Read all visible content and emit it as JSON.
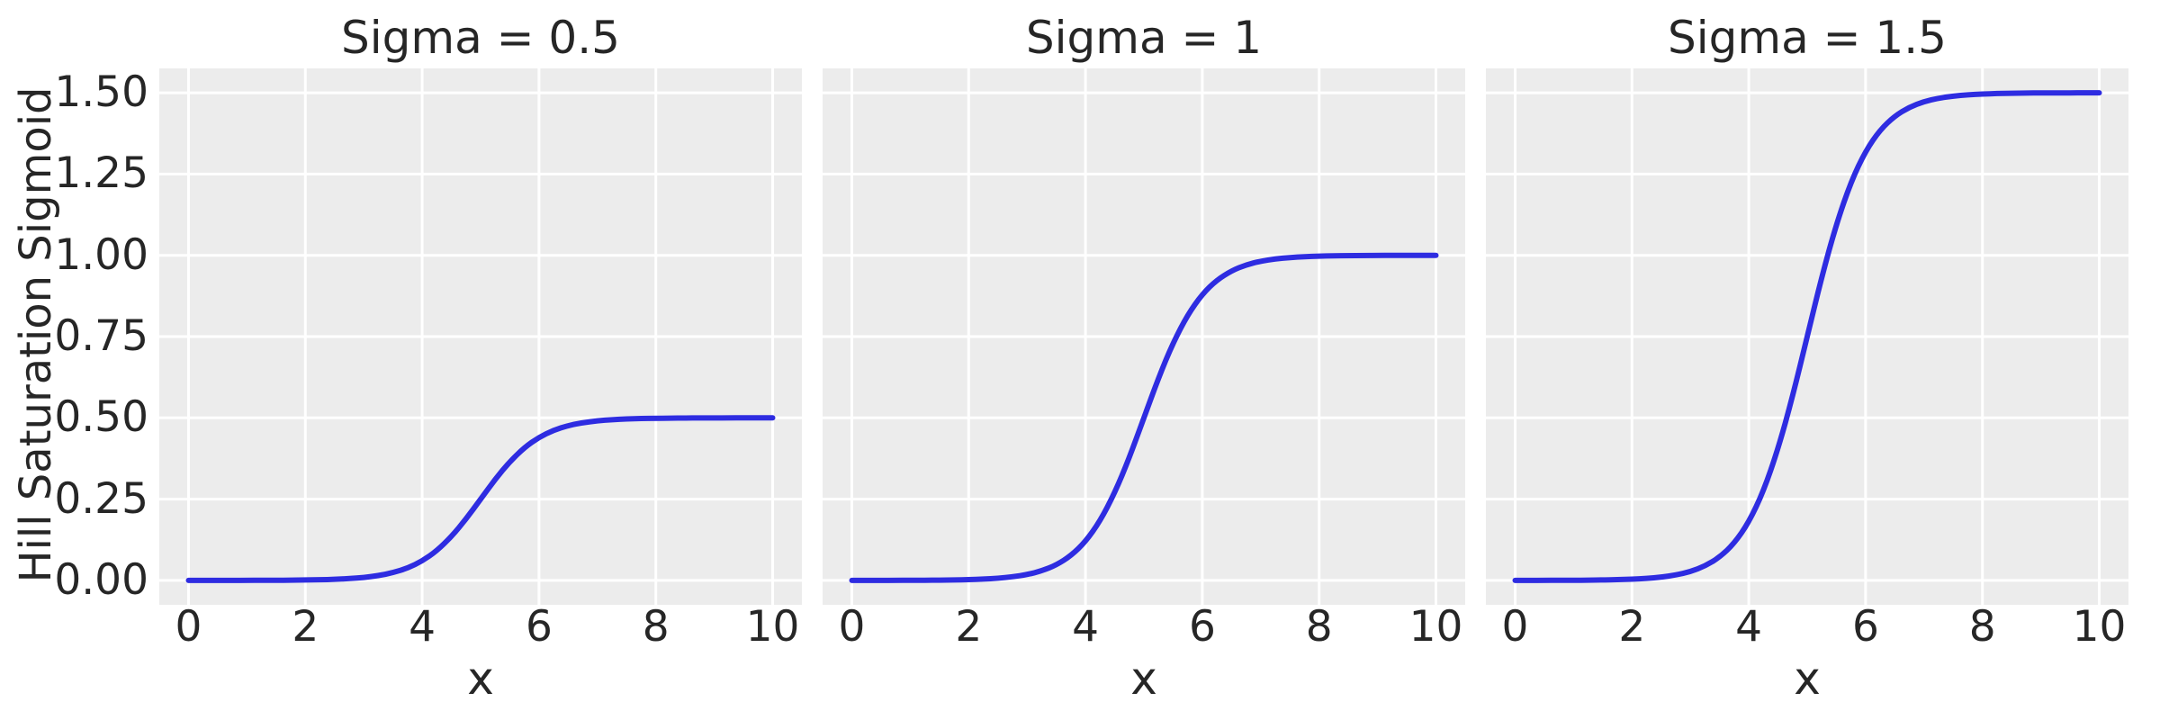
{
  "figure": {
    "ylabel": "Hill Saturation Sigmoid",
    "colors": {
      "figure_bg": "#ffffff",
      "panel_bg": "#ececec",
      "grid": "#ffffff",
      "line": "#2e2ce1",
      "text": "#262626"
    }
  },
  "chart_data": [
    {
      "type": "line",
      "title": "Sigma = 0.5",
      "sigma": 0.5,
      "xlabel": "x",
      "ylabel": "Hill Saturation Sigmoid",
      "xlim": [
        -0.5,
        10.5
      ],
      "ylim": [
        -0.075,
        1.575
      ],
      "xticks": [
        0,
        2,
        4,
        6,
        8,
        10
      ],
      "xtick_labels": [
        "0",
        "2",
        "4",
        "6",
        "8",
        "10"
      ],
      "yticks": [
        0,
        0.25,
        0.5,
        0.75,
        1.0,
        1.25,
        1.5
      ],
      "ytick_labels": [
        "0.00",
        "0.25",
        "0.50",
        "0.75",
        "1.00",
        "1.25",
        "1.50"
      ],
      "ytick_labels_visible": true,
      "grid": true,
      "legend": false,
      "x": [
        0,
        0.25,
        0.5,
        0.75,
        1,
        1.25,
        1.5,
        1.75,
        2,
        2.25,
        2.5,
        2.75,
        3,
        3.25,
        3.5,
        3.75,
        4,
        4.25,
        4.5,
        4.75,
        5,
        5.25,
        5.5,
        5.75,
        6,
        6.25,
        6.5,
        6.75,
        7,
        7.25,
        7.5,
        7.75,
        8,
        8.25,
        8.5,
        8.75,
        9,
        9.25,
        9.5,
        9.75,
        10
      ],
      "y": [
        0.0,
        0.0,
        0.0001,
        0.0001,
        0.0002,
        0.0003,
        0.0005,
        0.0008,
        0.0012,
        0.002,
        0.0033,
        0.0055,
        0.009,
        0.0147,
        0.0237,
        0.0379,
        0.0596,
        0.0912,
        0.1345,
        0.1888,
        0.25,
        0.3112,
        0.3655,
        0.4088,
        0.4404,
        0.4621,
        0.4763,
        0.4853,
        0.491,
        0.4945,
        0.4967,
        0.498,
        0.4988,
        0.4992,
        0.4995,
        0.4997,
        0.4998,
        0.4999,
        0.4999,
        0.5,
        0.5
      ]
    },
    {
      "type": "line",
      "title": "Sigma = 1",
      "sigma": 1,
      "xlabel": "x",
      "xlim": [
        -0.5,
        10.5
      ],
      "ylim": [
        -0.075,
        1.575
      ],
      "xticks": [
        0,
        2,
        4,
        6,
        8,
        10
      ],
      "xtick_labels": [
        "0",
        "2",
        "4",
        "6",
        "8",
        "10"
      ],
      "yticks": [
        0,
        0.25,
        0.5,
        0.75,
        1.0,
        1.25,
        1.5
      ],
      "ytick_labels": [
        "0.00",
        "0.25",
        "0.50",
        "0.75",
        "1.00",
        "1.25",
        "1.50"
      ],
      "ytick_labels_visible": false,
      "grid": true,
      "legend": false,
      "x": [
        0,
        0.25,
        0.5,
        0.75,
        1,
        1.25,
        1.5,
        1.75,
        2,
        2.25,
        2.5,
        2.75,
        3,
        3.25,
        3.5,
        3.75,
        4,
        4.25,
        4.5,
        4.75,
        5,
        5.25,
        5.5,
        5.75,
        6,
        6.25,
        6.5,
        6.75,
        7,
        7.25,
        7.5,
        7.75,
        8,
        8.25,
        8.5,
        8.75,
        9,
        9.25,
        9.5,
        9.75,
        10
      ],
      "y": [
        0.0,
        0.0001,
        0.0001,
        0.0002,
        0.0003,
        0.0006,
        0.0009,
        0.0015,
        0.0025,
        0.0041,
        0.0067,
        0.011,
        0.018,
        0.0293,
        0.0474,
        0.0759,
        0.1192,
        0.1824,
        0.2689,
        0.3775,
        0.5,
        0.6225,
        0.7311,
        0.8176,
        0.8808,
        0.9241,
        0.9526,
        0.9707,
        0.982,
        0.989,
        0.9933,
        0.9959,
        0.9975,
        0.9985,
        0.9991,
        0.9994,
        0.9997,
        0.9998,
        0.9999,
        0.9999,
        1.0
      ]
    },
    {
      "type": "line",
      "title": "Sigma = 1.5",
      "sigma": 1.5,
      "xlabel": "x",
      "xlim": [
        -0.5,
        10.5
      ],
      "ylim": [
        -0.075,
        1.575
      ],
      "xticks": [
        0,
        2,
        4,
        6,
        8,
        10
      ],
      "xtick_labels": [
        "0",
        "2",
        "4",
        "6",
        "8",
        "10"
      ],
      "yticks": [
        0,
        0.25,
        0.5,
        0.75,
        1.0,
        1.25,
        1.5
      ],
      "ytick_labels": [
        "0.00",
        "0.25",
        "0.50",
        "0.75",
        "1.00",
        "1.25",
        "1.50"
      ],
      "ytick_labels_visible": false,
      "grid": true,
      "legend": false,
      "x": [
        0,
        0.25,
        0.5,
        0.75,
        1,
        1.25,
        1.5,
        1.75,
        2,
        2.25,
        2.5,
        2.75,
        3,
        3.25,
        3.5,
        3.75,
        4,
        4.25,
        4.5,
        4.75,
        5,
        5.25,
        5.5,
        5.75,
        6,
        6.25,
        6.5,
        6.75,
        7,
        7.25,
        7.5,
        7.75,
        8,
        8.25,
        8.5,
        8.75,
        9,
        9.25,
        9.5,
        9.75,
        10
      ],
      "y": [
        0.0001,
        0.0001,
        0.0002,
        0.0003,
        0.0005,
        0.0008,
        0.0014,
        0.0023,
        0.0037,
        0.0061,
        0.01,
        0.0165,
        0.027,
        0.044,
        0.0711,
        0.1138,
        0.1788,
        0.2736,
        0.4034,
        0.5663,
        0.75,
        0.9337,
        1.0966,
        1.2264,
        1.3212,
        1.3862,
        1.4289,
        1.456,
        1.473,
        1.4835,
        1.49,
        1.4939,
        1.4963,
        1.4977,
        1.4986,
        1.4992,
        1.4995,
        1.4997,
        1.4998,
        1.4999,
        1.4999
      ]
    }
  ]
}
